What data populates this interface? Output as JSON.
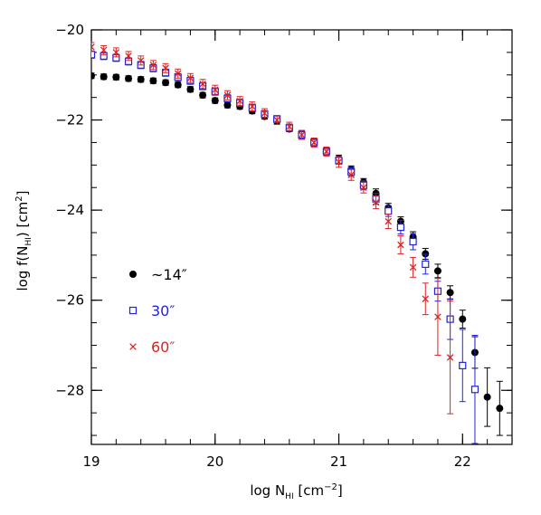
{
  "chart_data": {
    "type": "scatter",
    "xlabel": {
      "main": "log N",
      "sub": "HI",
      "tail": " [cm",
      "sup": "−2",
      "end": "]"
    },
    "ylabel": {
      "main": "log f(N",
      "sub": "HI",
      "mid": ")  [cm",
      "sup": "2",
      "end": "]"
    },
    "xlim": [
      19.0,
      22.4
    ],
    "ylim": [
      -29.2,
      -20.0
    ],
    "xticks": [
      19,
      20,
      21,
      22
    ],
    "yticks": [
      -20,
      -22,
      -24,
      -26,
      -28
    ],
    "x_tick_labels": [
      "19",
      "20",
      "21",
      "22"
    ],
    "y_tick_labels": [
      "−20",
      "−22",
      "−24",
      "−26",
      "−28"
    ],
    "x_minor_step": 0.2,
    "y_minor_step": 0.5,
    "legend_position": "left-middle",
    "series": [
      {
        "name": "~14″",
        "color": "#000000",
        "marker": "filled-circle",
        "points": [
          [
            19.0,
            -21.02,
            0.06
          ],
          [
            19.1,
            -21.04,
            0.06
          ],
          [
            19.2,
            -21.05,
            0.06
          ],
          [
            19.3,
            -21.08,
            0.06
          ],
          [
            19.4,
            -21.1,
            0.06
          ],
          [
            19.5,
            -21.13,
            0.06
          ],
          [
            19.6,
            -21.17,
            0.06
          ],
          [
            19.7,
            -21.22,
            0.06
          ],
          [
            19.8,
            -21.32,
            0.06
          ],
          [
            19.9,
            -21.45,
            0.06
          ],
          [
            20.0,
            -21.57,
            0.06
          ],
          [
            20.1,
            -21.67,
            0.06
          ],
          [
            20.2,
            -21.7,
            0.06
          ],
          [
            20.3,
            -21.8,
            0.06
          ],
          [
            20.4,
            -21.92,
            0.06
          ],
          [
            20.5,
            -22.03,
            0.06
          ],
          [
            20.6,
            -22.2,
            0.06
          ],
          [
            20.7,
            -22.32,
            0.06
          ],
          [
            20.8,
            -22.5,
            0.06
          ],
          [
            20.9,
            -22.7,
            0.06
          ],
          [
            21.0,
            -22.86,
            0.08
          ],
          [
            21.1,
            -23.1,
            0.08
          ],
          [
            21.2,
            -23.38,
            0.08
          ],
          [
            21.3,
            -23.63,
            0.1
          ],
          [
            21.4,
            -23.95,
            0.1
          ],
          [
            21.5,
            -24.25,
            0.1
          ],
          [
            21.6,
            -24.6,
            0.12
          ],
          [
            21.7,
            -24.97,
            0.12
          ],
          [
            21.8,
            -25.35,
            0.15
          ],
          [
            21.9,
            -25.83,
            0.15
          ],
          [
            22.0,
            -26.42,
            0.2
          ],
          [
            22.1,
            -27.16,
            0.35
          ],
          [
            22.2,
            -28.15,
            0.65
          ],
          [
            22.3,
            -28.4,
            0.6
          ]
        ]
      },
      {
        "name": "30″",
        "color": "#2222dd",
        "marker": "open-square",
        "points": [
          [
            19.0,
            -20.55,
            0.08
          ],
          [
            19.1,
            -20.58,
            0.08
          ],
          [
            19.2,
            -20.62,
            0.08
          ],
          [
            19.3,
            -20.7,
            0.08
          ],
          [
            19.4,
            -20.78,
            0.08
          ],
          [
            19.5,
            -20.85,
            0.08
          ],
          [
            19.6,
            -20.95,
            0.08
          ],
          [
            19.7,
            -21.05,
            0.08
          ],
          [
            19.8,
            -21.13,
            0.08
          ],
          [
            19.9,
            -21.25,
            0.08
          ],
          [
            20.0,
            -21.37,
            0.08
          ],
          [
            20.1,
            -21.52,
            0.08
          ],
          [
            20.2,
            -21.62,
            0.08
          ],
          [
            20.3,
            -21.73,
            0.08
          ],
          [
            20.4,
            -21.87,
            0.08
          ],
          [
            20.5,
            -21.98,
            0.08
          ],
          [
            20.6,
            -22.17,
            0.08
          ],
          [
            20.7,
            -22.33,
            0.08
          ],
          [
            20.8,
            -22.5,
            0.08
          ],
          [
            20.9,
            -22.7,
            0.08
          ],
          [
            21.0,
            -22.9,
            0.08
          ],
          [
            21.1,
            -23.15,
            0.1
          ],
          [
            21.2,
            -23.45,
            0.1
          ],
          [
            21.3,
            -23.75,
            0.12
          ],
          [
            21.4,
            -24.02,
            0.12
          ],
          [
            21.5,
            -24.38,
            0.15
          ],
          [
            21.6,
            -24.7,
            0.18
          ],
          [
            21.7,
            -25.2,
            0.22
          ],
          [
            21.8,
            -25.8,
            0.22
          ],
          [
            21.9,
            -26.42,
            0.45
          ],
          [
            22.0,
            -27.45,
            0.8
          ],
          [
            22.1,
            -27.98,
            1.2
          ]
        ]
      },
      {
        "name": "60″",
        "color": "#dd2222",
        "marker": "cross",
        "points": [
          [
            19.0,
            -20.38,
            0.1
          ],
          [
            19.1,
            -20.45,
            0.1
          ],
          [
            19.2,
            -20.5,
            0.1
          ],
          [
            19.3,
            -20.58,
            0.1
          ],
          [
            19.4,
            -20.68,
            0.1
          ],
          [
            19.5,
            -20.78,
            0.1
          ],
          [
            19.6,
            -20.85,
            0.1
          ],
          [
            19.7,
            -20.97,
            0.1
          ],
          [
            19.8,
            -21.07,
            0.1
          ],
          [
            19.9,
            -21.2,
            0.1
          ],
          [
            20.0,
            -21.33,
            0.1
          ],
          [
            20.1,
            -21.45,
            0.1
          ],
          [
            20.2,
            -21.58,
            0.1
          ],
          [
            20.3,
            -21.7,
            0.1
          ],
          [
            20.4,
            -21.85,
            0.1
          ],
          [
            20.5,
            -22.0,
            0.1
          ],
          [
            20.6,
            -22.15,
            0.1
          ],
          [
            20.7,
            -22.33,
            0.1
          ],
          [
            20.8,
            -22.5,
            0.1
          ],
          [
            20.9,
            -22.7,
            0.1
          ],
          [
            21.0,
            -22.93,
            0.12
          ],
          [
            21.1,
            -23.22,
            0.12
          ],
          [
            21.2,
            -23.5,
            0.12
          ],
          [
            21.3,
            -23.83,
            0.14
          ],
          [
            21.4,
            -24.25,
            0.16
          ],
          [
            21.5,
            -24.77,
            0.2
          ],
          [
            21.6,
            -25.27,
            0.22
          ],
          [
            21.7,
            -25.97,
            0.35
          ],
          [
            21.8,
            -26.37,
            0.85
          ],
          [
            21.9,
            -27.27,
            1.25
          ]
        ]
      }
    ]
  }
}
